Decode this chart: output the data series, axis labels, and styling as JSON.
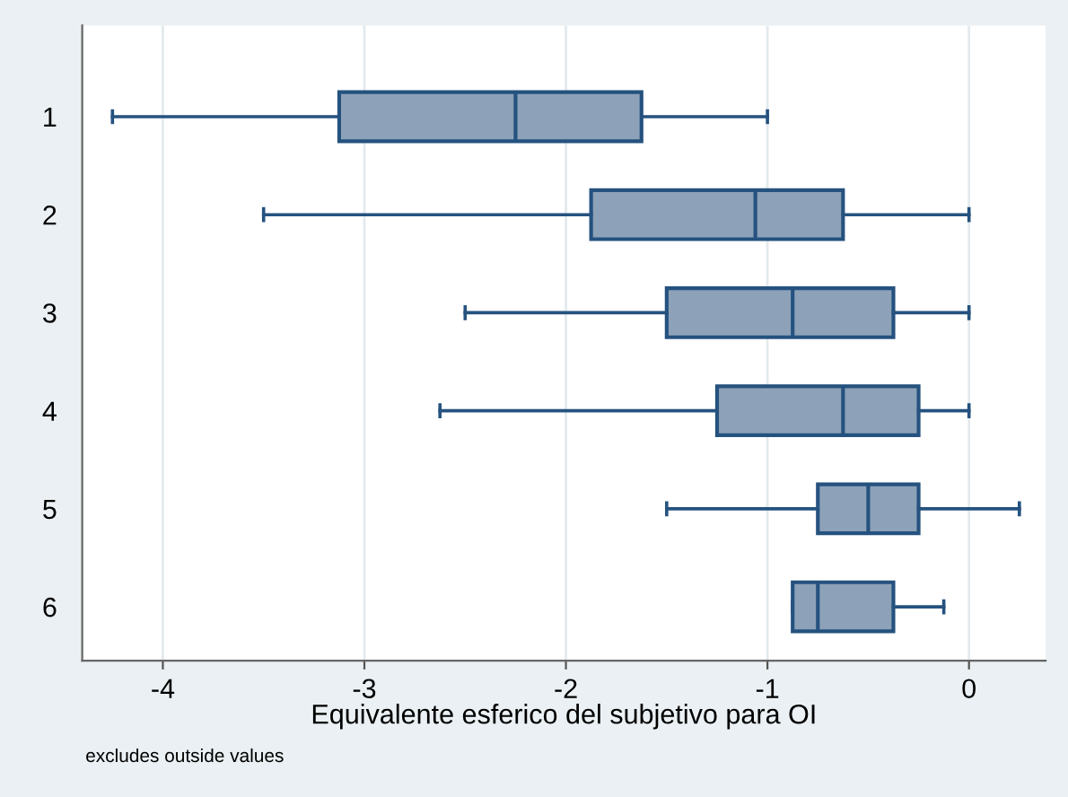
{
  "chart_data": {
    "type": "box",
    "orientation": "horizontal",
    "xlabel": "Equivalente esferico del subjetivo para OI",
    "categories": [
      "1",
      "2",
      "3",
      "4",
      "5",
      "6"
    ],
    "boxes": [
      {
        "low": -4.25,
        "q1": -3.125,
        "median": -2.25,
        "q3": -1.625,
        "high": -1.0
      },
      {
        "low": -3.5,
        "q1": -1.875,
        "median": -1.06,
        "q3": -0.625,
        "high": 0
      },
      {
        "low": -2.5,
        "q1": -1.5,
        "median": -0.875,
        "q3": -0.375,
        "high": 0
      },
      {
        "low": -2.625,
        "q1": -1.25,
        "median": -0.625,
        "q3": -0.25,
        "high": 0
      },
      {
        "low": -1.5,
        "q1": -0.75,
        "median": -0.5,
        "q3": -0.25,
        "high": 0.25
      },
      {
        "low": -0.875,
        "q1": -0.875,
        "median": -0.75,
        "q3": -0.375,
        "high": -0.125
      }
    ],
    "color": "#8da2b8",
    "xlim": [
      -4.4,
      0.38
    ],
    "xticks": [
      -4,
      -3,
      -2,
      -1,
      0
    ],
    "grid": "x",
    "legend": false,
    "annotations": [
      "excludes outside values"
    ]
  }
}
